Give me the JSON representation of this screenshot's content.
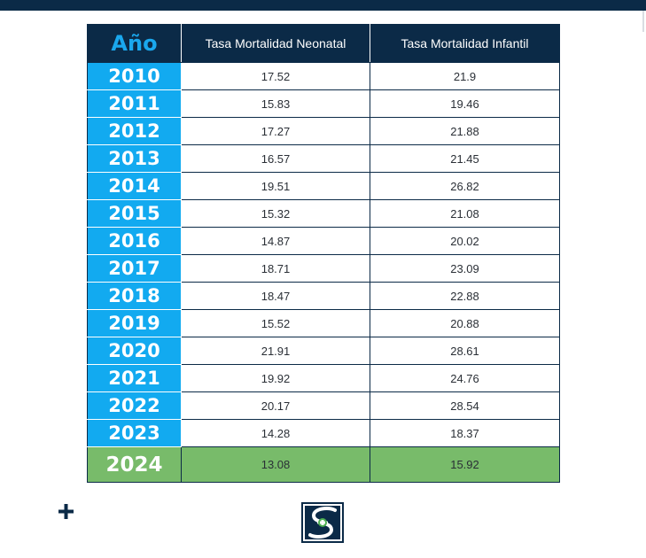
{
  "chart_data": {
    "type": "table",
    "columns": [
      "Año",
      "Tasa Mortalidad Neonatal",
      "Tasa Mortalidad Infantil"
    ],
    "rows": [
      {
        "year": "2010",
        "neonatal": "17.52",
        "infantil": "21.9"
      },
      {
        "year": "2011",
        "neonatal": "15.83",
        "infantil": "19.46"
      },
      {
        "year": "2012",
        "neonatal": "17.27",
        "infantil": "21.88"
      },
      {
        "year": "2013",
        "neonatal": "16.57",
        "infantil": "21.45"
      },
      {
        "year": "2014",
        "neonatal": "19.51",
        "infantil": "26.82"
      },
      {
        "year": "2015",
        "neonatal": "15.32",
        "infantil": "21.08"
      },
      {
        "year": "2016",
        "neonatal": "14.87",
        "infantil": "20.02"
      },
      {
        "year": "2017",
        "neonatal": "18.71",
        "infantil": "23.09"
      },
      {
        "year": "2018",
        "neonatal": "18.47",
        "infantil": "22.88"
      },
      {
        "year": "2019",
        "neonatal": "15.52",
        "infantil": "20.88"
      },
      {
        "year": "2020",
        "neonatal": "21.91",
        "infantil": "28.61"
      },
      {
        "year": "2021",
        "neonatal": "19.92",
        "infantil": "24.76"
      },
      {
        "year": "2022",
        "neonatal": "20.17",
        "infantil": "28.54"
      },
      {
        "year": "2023",
        "neonatal": "14.28",
        "infantil": "18.37"
      },
      {
        "year": "2024",
        "neonatal": "13.08",
        "infantil": "15.92"
      }
    ],
    "highlight_row": "2024"
  },
  "colors": {
    "header_bg": "#0b2a47",
    "year_header_text": "#1aa8ee",
    "year_cell_bg": "#12aaf0",
    "highlight_bg": "#78bb6a",
    "accent_green": "#4caf50"
  },
  "icons": {
    "plus": "plus-icon",
    "logo": "hands-s-logo"
  }
}
